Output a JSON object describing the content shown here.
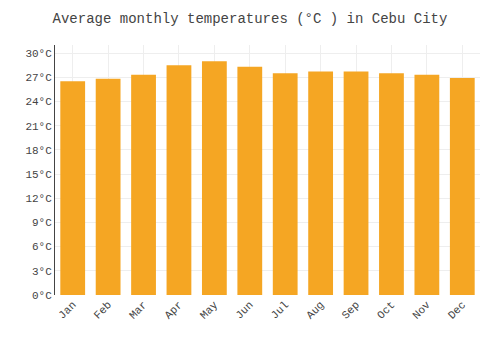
{
  "chart_data": {
    "type": "bar",
    "title": "Average monthly temperatures (°C ) in Cebu City",
    "categories": [
      "Jan",
      "Feb",
      "Mar",
      "Apr",
      "May",
      "Jun",
      "Jul",
      "Aug",
      "Sep",
      "Oct",
      "Nov",
      "Dec"
    ],
    "values": [
      26.5,
      26.8,
      27.3,
      28.5,
      29.0,
      28.3,
      27.5,
      27.7,
      27.7,
      27.5,
      27.3,
      26.9
    ],
    "color": "#F5A623",
    "ylim": [
      0,
      31
    ],
    "yticks": [
      {
        "value": 0,
        "label": "0°C"
      },
      {
        "value": 3,
        "label": "3°C"
      },
      {
        "value": 6,
        "label": "6°C"
      },
      {
        "value": 9,
        "label": "9°C"
      },
      {
        "value": 12,
        "label": "12°C"
      },
      {
        "value": 15,
        "label": "15°C"
      },
      {
        "value": 18,
        "label": "18°C"
      },
      {
        "value": 21,
        "label": "21°C"
      },
      {
        "value": 24,
        "label": "24°C"
      },
      {
        "value": 27,
        "label": "27°C"
      },
      {
        "value": 30,
        "label": "30°C"
      }
    ],
    "grid": true
  }
}
